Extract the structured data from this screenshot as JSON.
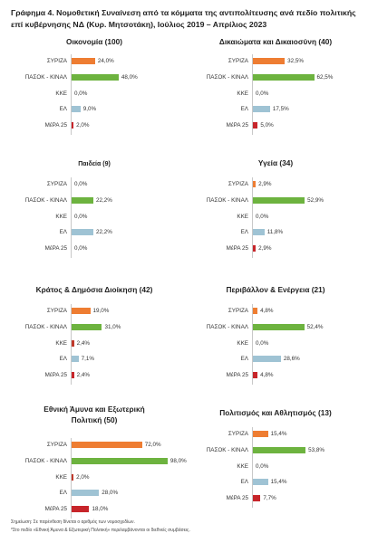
{
  "title": "Γράφημα 4. Νομοθετική Συναίνεση από τα κόμματα της αντιπολίτευσης ανά πεδίο πολιτικής επί κυβέρνησης ΝΔ (Κυρ. Μητσοτάκη), Ιούλιος 2019 – Απρίλιος 2023",
  "colors": {
    "ΣΥΡΙΖΑ": "#ee7d32",
    "ΠΑΣΟΚ - ΚΙΝΑΛ": "#6db33f",
    "ΚΚΕ": "#c0392b",
    "ΕΛ": "#9fc3d4",
    "ΜέΡΑ 25": "#c7252a"
  },
  "chart_data": [
    {
      "type": "bar",
      "title": "Οικονομία (100)",
      "categories": [
        "ΣΥΡΙΖΑ",
        "ΠΑΣΟΚ - ΚΙΝΑΛ",
        "ΚΚΕ",
        "ΕΛ",
        "ΜέΡΑ 25"
      ],
      "values": [
        24.0,
        48.0,
        0.0,
        9.0,
        2.0
      ],
      "labels": [
        "24,0%",
        "48,0%",
        "0,0%",
        "9,0%",
        "2,0%"
      ]
    },
    {
      "type": "bar",
      "title": "Δικαιώματα και Δικαιοσύνη (40)",
      "categories": [
        "ΣΥΡΙΖΑ",
        "ΠΑΣΟΚ - ΚΙΝΑΛ",
        "ΚΚΕ",
        "ΕΛ",
        "ΜέΡΑ 25"
      ],
      "values": [
        32.5,
        62.5,
        0.0,
        17.5,
        5.0
      ],
      "labels": [
        "32,5%",
        "62,5%",
        "0,0%",
        "17,5%",
        "5,0%"
      ]
    },
    {
      "type": "bar",
      "title": "Παιδεία (9)",
      "categories": [
        "ΣΥΡΙΖΑ",
        "ΠΑΣΟΚ - ΚΙΝΑΛ",
        "ΚΚΕ",
        "ΕΛ",
        "ΜέΡΑ 25"
      ],
      "values": [
        0.0,
        22.2,
        0.0,
        22.2,
        0.0
      ],
      "labels": [
        "0,0%",
        "22,2%",
        "0,0%",
        "22,2%",
        "0,0%"
      ]
    },
    {
      "type": "bar",
      "title": "Υγεία (34)",
      "categories": [
        "ΣΥΡΙΖΑ",
        "ΠΑΣΟΚ - ΚΙΝΑΛ",
        "ΚΚΕ",
        "ΕΛ",
        "ΜέΡΑ 25"
      ],
      "values": [
        2.9,
        52.9,
        0.0,
        11.8,
        2.9
      ],
      "labels": [
        "2,9%",
        "52,9%",
        "0,0%",
        "11,8%",
        "2,9%"
      ]
    },
    {
      "type": "bar",
      "title": "Κράτος & Δημόσια Διοίκηση (42)",
      "categories": [
        "ΣΥΡΙΖΑ",
        "ΠΑΣΟΚ - ΚΙΝΑΛ",
        "ΚΚΕ",
        "ΕΛ",
        "ΜέΡΑ 25"
      ],
      "values": [
        19.0,
        31.0,
        2.4,
        7.1,
        2.4
      ],
      "labels": [
        "19,0%",
        "31,0%",
        "2,4%",
        "7,1%",
        "2,4%"
      ]
    },
    {
      "type": "bar",
      "title": "Περιβάλλον & Ενέργεια (21)",
      "categories": [
        "ΣΥΡΙΖΑ",
        "ΠΑΣΟΚ - ΚΙΝΑΛ",
        "ΚΚΕ",
        "ΕΛ",
        "ΜέΡΑ 25"
      ],
      "values": [
        4.8,
        52.4,
        0.0,
        28.6,
        4.8
      ],
      "labels": [
        "4,8%",
        "52,4%",
        "0,0%",
        "28,6%",
        "4,8%"
      ]
    },
    {
      "type": "bar",
      "title": "Εθνική Άμυνα και Εξωτερική Πολιτική (50)",
      "categories": [
        "ΣΥΡΙΖΑ",
        "ΠΑΣΟΚ - ΚΙΝΑΛ",
        "ΚΚΕ",
        "ΕΛ",
        "ΜέΡΑ 25"
      ],
      "values": [
        72.0,
        98.0,
        2.0,
        28.0,
        18.0
      ],
      "labels": [
        "72,0%",
        "98,0%",
        "2,0%",
        "28,0%",
        "18,0%"
      ]
    },
    {
      "type": "bar",
      "title": "Πολιτισμός και Αθλητισμός (13)",
      "categories": [
        "ΣΥΡΙΖΑ",
        "ΠΑΣΟΚ - ΚΙΝΑΛ",
        "ΚΚΕ",
        "ΕΛ",
        "ΜέΡΑ 25"
      ],
      "values": [
        15.4,
        53.8,
        0.0,
        15.4,
        7.7
      ],
      "labels": [
        "15,4%",
        "53,8%",
        "0,0%",
        "15,4%",
        "7,7%"
      ]
    }
  ],
  "notes": [
    "Σημείωση: Σε παρένθεση δίνεται ο αριθμός των νομοσχεδίων.",
    "*Στο πεδίο «Εθνική Άμυνα & Εξωτερική Πολιτική» περιλαμβάνονται οι διεθνείς συμβάσεις."
  ]
}
